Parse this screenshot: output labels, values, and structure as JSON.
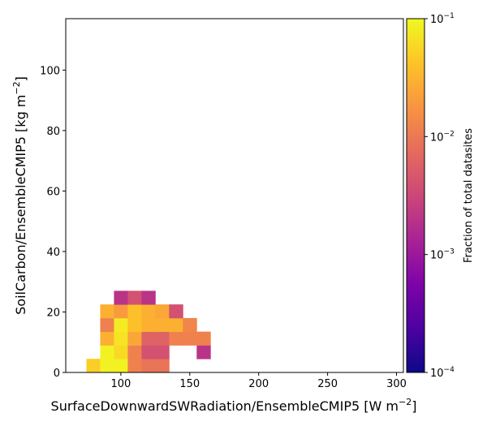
{
  "chart_data": {
    "type": "heatmap",
    "title": "",
    "xlabel": "SurfaceDownwardSWRadiation/EnsembleCMIP5 [W m",
    "xlabel_sup": "−2",
    "xlabel_end": "]",
    "ylabel": "SoilCarbon/EnsembleCMIP5 [kg m",
    "ylabel_sup": "−2",
    "ylabel_end": "]",
    "xlim": [
      60,
      305
    ],
    "ylim": [
      0,
      117
    ],
    "xticks": [
      100,
      150,
      200,
      250,
      300
    ],
    "yticks": [
      0,
      20,
      40,
      60,
      80,
      100
    ],
    "bin_width_x": 10,
    "bin_height_y": 4.5,
    "colorbar": {
      "label": "Fraction of total datasites",
      "scale": "log",
      "range": [
        0.0001,
        0.1
      ],
      "colormap": "plasma",
      "ticks": [
        {
          "value": 0.1,
          "base": "10",
          "exp": "−1"
        },
        {
          "value": 0.01,
          "base": "10",
          "exp": "−2"
        },
        {
          "value": 0.001,
          "base": "10",
          "exp": "−3"
        },
        {
          "value": 0.0001,
          "base": "10",
          "exp": "−4"
        }
      ]
    },
    "cells": [
      {
        "x": 75,
        "y": 0,
        "value": 0.05
      },
      {
        "x": 85,
        "y": 0,
        "value": 0.09
      },
      {
        "x": 95,
        "y": 0,
        "value": 0.09
      },
      {
        "x": 105,
        "y": 0,
        "value": 0.012
      },
      {
        "x": 115,
        "y": 0,
        "value": 0.009
      },
      {
        "x": 125,
        "y": 0,
        "value": 0.009
      },
      {
        "x": 85,
        "y": 4.5,
        "value": 0.09
      },
      {
        "x": 95,
        "y": 4.5,
        "value": 0.06
      },
      {
        "x": 105,
        "y": 4.5,
        "value": 0.012
      },
      {
        "x": 115,
        "y": 4.5,
        "value": 0.004
      },
      {
        "x": 125,
        "y": 4.5,
        "value": 0.004
      },
      {
        "x": 155,
        "y": 4.5,
        "value": 0.002
      },
      {
        "x": 85,
        "y": 9,
        "value": 0.03
      },
      {
        "x": 95,
        "y": 9,
        "value": 0.07
      },
      {
        "x": 105,
        "y": 9,
        "value": 0.025
      },
      {
        "x": 115,
        "y": 9,
        "value": 0.006
      },
      {
        "x": 125,
        "y": 9,
        "value": 0.006
      },
      {
        "x": 135,
        "y": 9,
        "value": 0.012
      },
      {
        "x": 145,
        "y": 9,
        "value": 0.012
      },
      {
        "x": 155,
        "y": 9,
        "value": 0.012
      },
      {
        "x": 85,
        "y": 13.5,
        "value": 0.012
      },
      {
        "x": 95,
        "y": 13.5,
        "value": 0.08
      },
      {
        "x": 105,
        "y": 13.5,
        "value": 0.04
      },
      {
        "x": 115,
        "y": 13.5,
        "value": 0.03
      },
      {
        "x": 125,
        "y": 13.5,
        "value": 0.03
      },
      {
        "x": 135,
        "y": 13.5,
        "value": 0.03
      },
      {
        "x": 145,
        "y": 13.5,
        "value": 0.013
      },
      {
        "x": 85,
        "y": 18,
        "value": 0.03
      },
      {
        "x": 95,
        "y": 18,
        "value": 0.02
      },
      {
        "x": 105,
        "y": 18,
        "value": 0.04
      },
      {
        "x": 115,
        "y": 18,
        "value": 0.03
      },
      {
        "x": 125,
        "y": 18,
        "value": 0.025
      },
      {
        "x": 135,
        "y": 18,
        "value": 0.004
      },
      {
        "x": 95,
        "y": 22.5,
        "value": 0.002
      },
      {
        "x": 105,
        "y": 22.5,
        "value": 0.004
      },
      {
        "x": 115,
        "y": 22.5,
        "value": 0.002
      }
    ]
  }
}
